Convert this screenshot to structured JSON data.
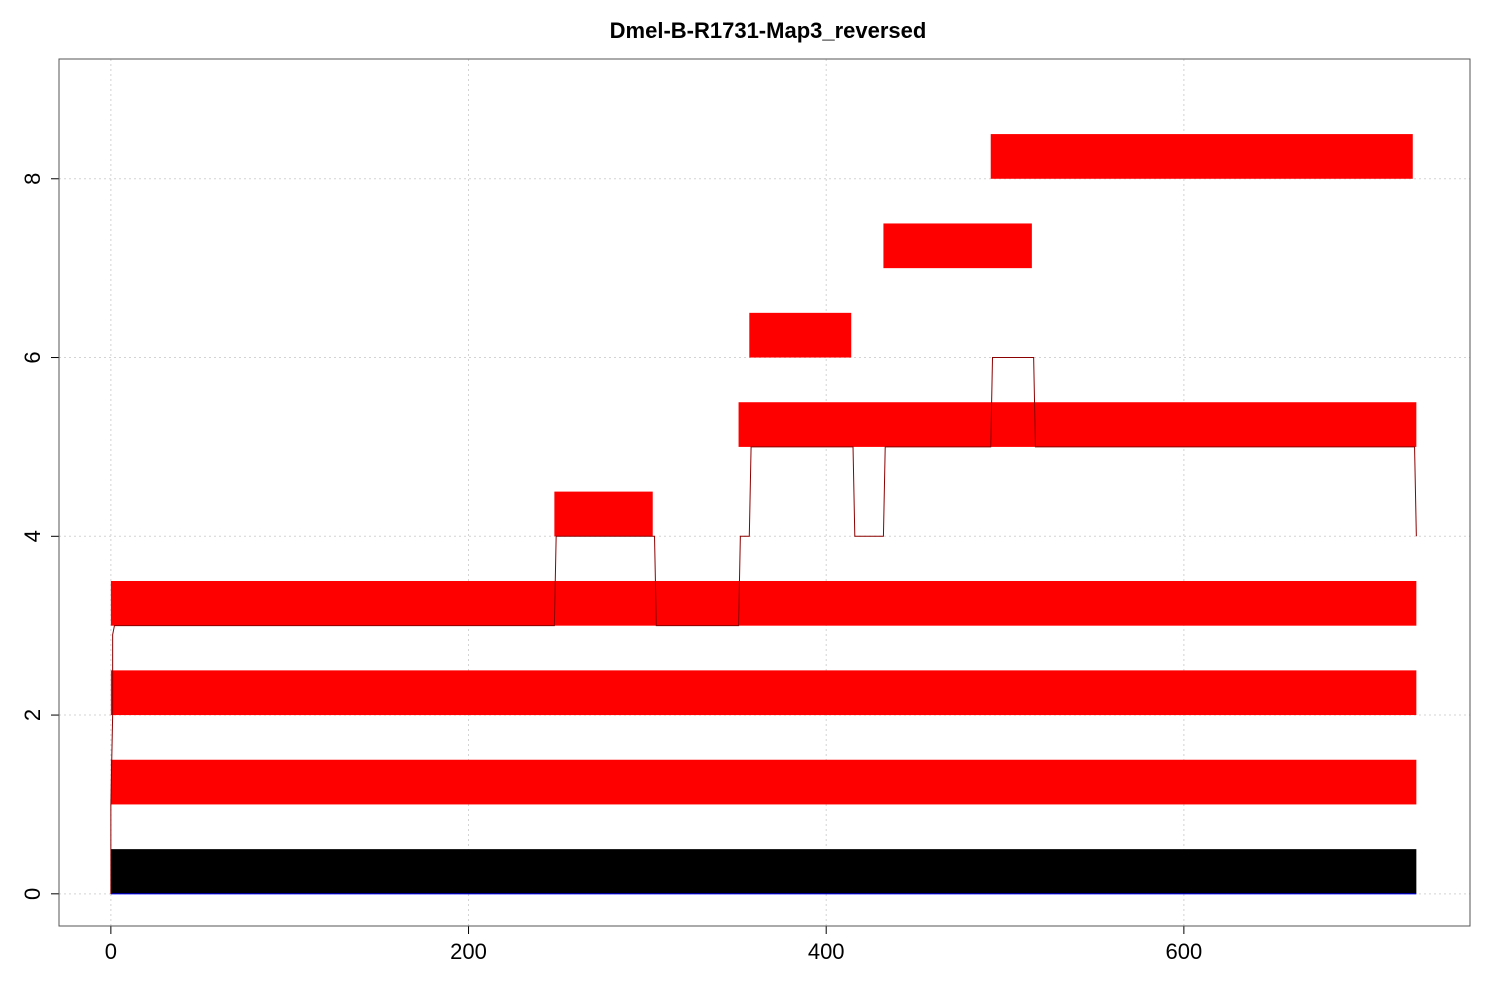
{
  "chart_data": {
    "type": "bar",
    "title": "Dmel-B-R1731-Map3_reversed",
    "xlabel": "",
    "ylabel": "",
    "xlim": [
      -29,
      760
    ],
    "ylim": [
      -0.36,
      9.34
    ],
    "x_ticks": [
      0,
      200,
      400,
      600
    ],
    "x_tick_labels": [
      "0",
      "200",
      "400",
      "600"
    ],
    "y_ticks": [
      0,
      2,
      4,
      6,
      8
    ],
    "y_tick_labels": [
      "0",
      "2",
      "4",
      "6",
      "8"
    ],
    "grid": true,
    "bars": [
      {
        "start": 0,
        "end": 730,
        "y": 0,
        "height": 0.5,
        "color": "#000000"
      },
      {
        "start": 0,
        "end": 730,
        "y": 1,
        "height": 0.5,
        "color": "#ff0000"
      },
      {
        "start": 0,
        "end": 730,
        "y": 2,
        "height": 0.5,
        "color": "#ff0000"
      },
      {
        "start": 0,
        "end": 730,
        "y": 3,
        "height": 0.5,
        "color": "#ff0000"
      },
      {
        "start": 248,
        "end": 303,
        "y": 4,
        "height": 0.5,
        "color": "#ff0000"
      },
      {
        "start": 351,
        "end": 730,
        "y": 5,
        "height": 0.5,
        "color": "#ff0000"
      },
      {
        "start": 357,
        "end": 414,
        "y": 6,
        "height": 0.5,
        "color": "#ff0000"
      },
      {
        "start": 432,
        "end": 515,
        "y": 7,
        "height": 0.5,
        "color": "#ff0000"
      },
      {
        "start": 492,
        "end": 728,
        "y": 8,
        "height": 0.5,
        "color": "#ff0000"
      }
    ],
    "coverage_line": {
      "color": "#8b0000",
      "x": [
        0,
        0,
        1,
        1,
        2,
        248,
        249,
        304,
        305,
        351,
        352,
        357,
        358,
        415,
        416,
        432,
        433,
        492,
        493,
        516,
        517,
        729,
        730
      ],
      "y": [
        0,
        1,
        2,
        2.9,
        3,
        3,
        4,
        4,
        3,
        3,
        4,
        4,
        5,
        5,
        4,
        4,
        5,
        5,
        6,
        6,
        5,
        5,
        4
      ]
    },
    "baseline_color": "#0000ff"
  }
}
